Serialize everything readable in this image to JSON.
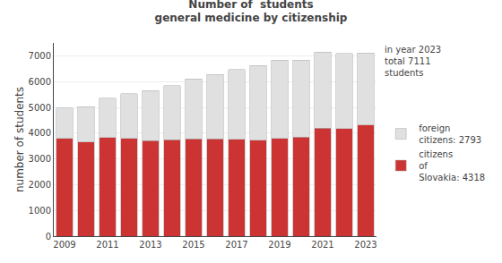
{
  "chart_data": {
    "type": "bar",
    "stacked": true,
    "title": "Number of  students\ngeneral medicine by citizenship",
    "ylabel": "number of students",
    "categories": [
      "2009",
      null,
      "2011",
      null,
      "2013",
      null,
      "2015",
      null,
      "2017",
      null,
      "2019",
      null,
      "2021",
      null,
      "2023"
    ],
    "series": [
      {
        "name": "citizens\nof\nSlovakia: 4318",
        "color": "#cc3333",
        "values": [
          3800,
          3650,
          3820,
          3800,
          3700,
          3750,
          3770,
          3780,
          3760,
          3730,
          3790,
          3850,
          4200,
          4180,
          4318
        ]
      },
      {
        "name": "foreign\ncitizens: 2793",
        "color": "#e0e0e0",
        "values": [
          1180,
          1380,
          1530,
          1730,
          1950,
          2100,
          2330,
          2490,
          2700,
          2900,
          3050,
          2980,
          2950,
          2920,
          2793
        ]
      }
    ],
    "ylim": [
      0,
      7500
    ],
    "yticks": [
      0,
      1000,
      2000,
      3000,
      4000,
      5000,
      6000,
      7000
    ],
    "grid": true,
    "legend": "right",
    "annotation": "in year 2023\ntotal 7111\nstudents"
  }
}
